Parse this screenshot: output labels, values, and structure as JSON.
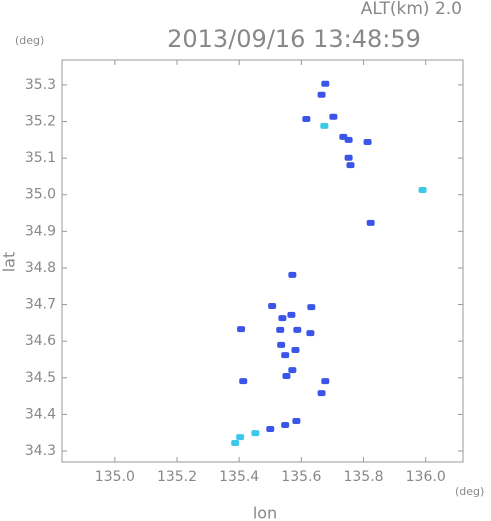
{
  "chart_data": {
    "type": "scatter",
    "title": "2013/09/16 13:48:59",
    "annotation": "ALT(km) 2.0",
    "y_unit": "(deg)",
    "x_unit": "(deg)",
    "xlabel": "lon",
    "ylabel": "lat",
    "xlim": [
      134.83,
      136.12
    ],
    "ylim": [
      34.27,
      35.368
    ],
    "xticks": [
      {
        "value": 135,
        "label": "135.0"
      },
      135.2,
      135.4,
      135.6,
      135.8,
      {
        "value": 136,
        "label": "136.0"
      }
    ],
    "yticks": [
      34.3,
      34.4,
      34.5,
      34.6,
      34.7,
      34.8,
      34.9,
      {
        "value": 35,
        "label": "35.0"
      },
      35.1,
      35.2,
      35.3
    ],
    "series": [
      {
        "color": "#3a55e8",
        "x": [
          135.677,
          135.665,
          135.616,
          135.703,
          135.735,
          135.752,
          135.813,
          135.752,
          135.758,
          135.823,
          135.571,
          135.506,
          135.632,
          135.406,
          135.539,
          135.568,
          135.532,
          135.587,
          135.535,
          135.548,
          135.581,
          135.571,
          135.552,
          135.629,
          135.677,
          135.665,
          135.413,
          135.584,
          135.548,
          135.5
        ],
        "values": [
          35.303,
          35.273,
          35.207,
          35.213,
          35.158,
          35.15,
          35.144,
          35.101,
          35.081,
          34.923,
          34.781,
          34.696,
          34.693,
          34.633,
          34.663,
          34.672,
          34.631,
          34.631,
          34.59,
          34.562,
          34.576,
          34.521,
          34.505,
          34.622,
          34.491,
          34.458,
          34.491,
          34.382,
          34.371,
          34.36
        ]
      },
      {
        "color": "#3cc8e8",
        "x": [
          135.674,
          135.99,
          135.452,
          135.403,
          135.387
        ],
        "values": [
          35.188,
          35.013,
          34.349,
          34.338,
          34.322
        ]
      }
    ]
  }
}
